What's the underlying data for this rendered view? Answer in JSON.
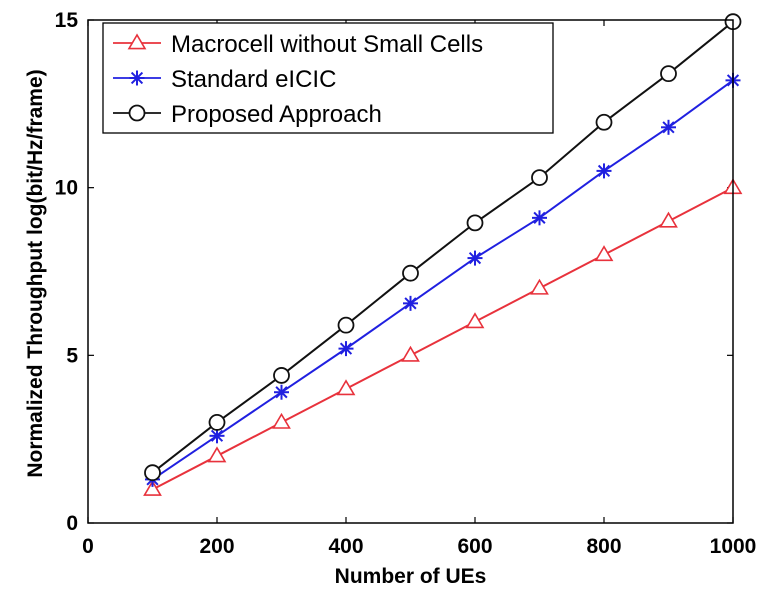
{
  "chart_data": {
    "type": "line",
    "xlabel": "Number of UEs",
    "ylabel": "Normalized Throughput log(bit/Hz/frame)",
    "xlim": [
      0,
      1000
    ],
    "ylim": [
      0,
      15
    ],
    "xticks": [
      0,
      200,
      400,
      600,
      800,
      1000
    ],
    "yticks": [
      0,
      5,
      10,
      15
    ],
    "x": [
      100,
      200,
      300,
      400,
      500,
      600,
      700,
      800,
      900,
      1000
    ],
    "grid": false,
    "legend_position": "top-left",
    "series": [
      {
        "name": "Macrocell without Small Cells",
        "color": "#e8323c",
        "marker": "triangle",
        "values": [
          1.0,
          2.0,
          3.0,
          4.0,
          5.0,
          6.0,
          7.0,
          8.0,
          9.0,
          10.0
        ]
      },
      {
        "name": "Standard eICIC",
        "color": "#2020e0",
        "marker": "asterisk",
        "values": [
          1.3,
          2.6,
          3.9,
          5.2,
          6.55,
          7.9,
          9.1,
          10.5,
          11.8,
          13.2
        ]
      },
      {
        "name": "Proposed Approach",
        "color": "#111111",
        "marker": "circle",
        "values": [
          1.5,
          3.0,
          4.4,
          5.9,
          7.45,
          8.95,
          10.3,
          11.95,
          13.4,
          14.95
        ]
      }
    ]
  }
}
